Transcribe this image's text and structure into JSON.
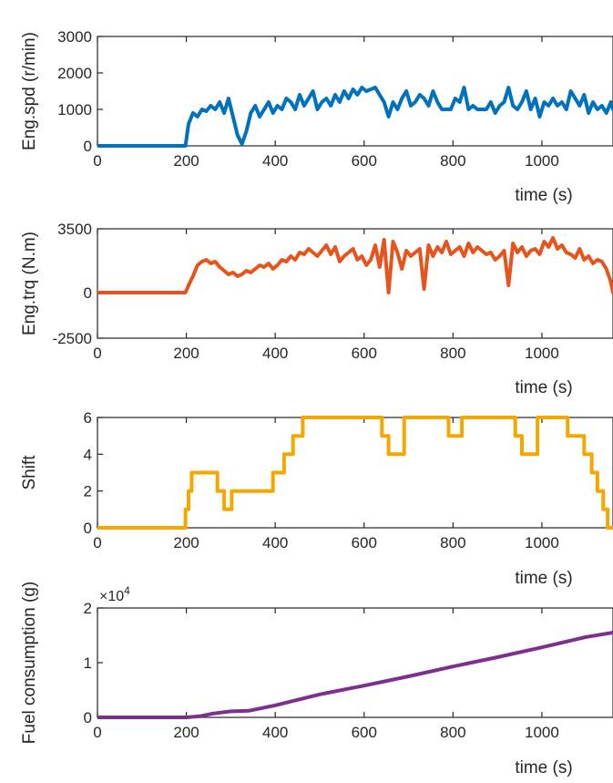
{
  "chart_data": [
    {
      "type": "line",
      "ylabel": "Eng.spd (r/min)",
      "xlabel": "time (s)",
      "xlim": [
        0,
        1160
      ],
      "ylim": [
        0,
        3000
      ],
      "xticks": [
        0,
        200,
        400,
        600,
        800,
        1000
      ],
      "xtick_labels": [
        "0",
        "200",
        "400",
        "600",
        "800",
        "1000"
      ],
      "yticks": [
        0,
        1000,
        2000,
        3000
      ],
      "ytick_labels": [
        "0",
        "1000",
        "2000",
        "3000"
      ],
      "color": "#0072BD",
      "series": [
        {
          "x": [
            0,
            198,
            205,
            215,
            225,
            235,
            245,
            255,
            265,
            275,
            285,
            295,
            305,
            315,
            325,
            335,
            345,
            355,
            365,
            375,
            385,
            395,
            405,
            415,
            425,
            435,
            445,
            455,
            465,
            475,
            485,
            495,
            505,
            515,
            525,
            535,
            545,
            555,
            565,
            575,
            585,
            595,
            605,
            615,
            625,
            635,
            645,
            655,
            665,
            675,
            685,
            695,
            705,
            715,
            725,
            735,
            745,
            755,
            765,
            775,
            785,
            795,
            805,
            815,
            825,
            835,
            845,
            855,
            865,
            875,
            885,
            895,
            905,
            915,
            925,
            935,
            945,
            955,
            965,
            975,
            985,
            995,
            1005,
            1015,
            1025,
            1035,
            1045,
            1055,
            1065,
            1075,
            1085,
            1095,
            1105,
            1115,
            1125,
            1135,
            1145,
            1155,
            1160
          ],
          "y": [
            0,
            0,
            600,
            900,
            800,
            1000,
            950,
            1100,
            1000,
            1200,
            900,
            1300,
            800,
            300,
            50,
            400,
            900,
            1100,
            800,
            1000,
            1200,
            900,
            1100,
            1000,
            1300,
            1200,
            1000,
            1400,
            1100,
            1300,
            1500,
            1000,
            1200,
            1300,
            1100,
            1400,
            1200,
            1500,
            1300,
            1550,
            1400,
            1600,
            1500,
            1550,
            1600,
            1400,
            1200,
            800,
            1200,
            1000,
            1300,
            1500,
            1100,
            1200,
            1400,
            1300,
            1100,
            1500,
            1200,
            1000,
            1000,
            1000,
            1300,
            1200,
            1600,
            1000,
            1100,
            1000,
            1000,
            1000,
            1200,
            900,
            1100,
            1200,
            1600,
            1100,
            1000,
            1200,
            1500,
            1000,
            1300,
            800,
            1200,
            1100,
            1300,
            1100,
            1200,
            1000,
            1500,
            1300,
            1100,
            1400,
            900,
            1200,
            1000,
            1100,
            900,
            1200,
            1000
          ]
        }
      ]
    },
    {
      "type": "line",
      "ylabel": "Eng.trq (N.m)",
      "xlabel": "time (s)",
      "xlim": [
        0,
        1160
      ],
      "ylim": [
        -2500,
        3500
      ],
      "xticks": [
        0,
        200,
        400,
        600,
        800,
        1000
      ],
      "xtick_labels": [
        "0",
        "200",
        "400",
        "600",
        "800",
        "1000"
      ],
      "yticks": [
        -2500,
        0,
        3500
      ],
      "ytick_labels": [
        "-2500",
        "0",
        "3500"
      ],
      "color": "#E8531C",
      "series": [
        {
          "x": [
            0,
            198,
            205,
            215,
            225,
            235,
            245,
            255,
            265,
            275,
            285,
            295,
            305,
            315,
            325,
            335,
            345,
            355,
            365,
            375,
            385,
            395,
            405,
            415,
            425,
            435,
            445,
            455,
            465,
            475,
            485,
            495,
            505,
            515,
            525,
            535,
            545,
            555,
            565,
            575,
            585,
            595,
            605,
            615,
            625,
            635,
            645,
            655,
            665,
            675,
            685,
            695,
            705,
            715,
            725,
            735,
            745,
            755,
            765,
            775,
            785,
            795,
            805,
            815,
            825,
            835,
            845,
            855,
            865,
            875,
            885,
            895,
            905,
            915,
            925,
            935,
            945,
            955,
            965,
            975,
            985,
            995,
            1005,
            1015,
            1025,
            1035,
            1045,
            1055,
            1065,
            1075,
            1085,
            1095,
            1105,
            1115,
            1125,
            1135,
            1145,
            1155,
            1160
          ],
          "y": [
            0,
            0,
            400,
            900,
            1500,
            1700,
            1800,
            1600,
            1700,
            1400,
            1200,
            1000,
            1100,
            900,
            1000,
            1200,
            1100,
            1300,
            1500,
            1400,
            1600,
            1300,
            1500,
            1800,
            1700,
            2000,
            1800,
            2200,
            2100,
            2400,
            2200,
            2000,
            2300,
            2600,
            2100,
            2500,
            1700,
            2000,
            2200,
            2400,
            1800,
            2000,
            1500,
            1800,
            2600,
            1400,
            2900,
            0,
            2800,
            2200,
            1300,
            2300,
            2000,
            2200,
            2400,
            200,
            2600,
            2000,
            2500,
            2200,
            2800,
            2100,
            2300,
            2500,
            2000,
            2700,
            2200,
            2500,
            2300,
            2100,
            2200,
            1800,
            2000,
            2300,
            400,
            2700,
            2200,
            2500,
            2000,
            2300,
            2400,
            2100,
            2800,
            2500,
            3000,
            2400,
            2600,
            2200,
            2100,
            1900,
            2400,
            1800,
            2000,
            1600,
            1800,
            1700,
            1300,
            600,
            0
          ]
        }
      ]
    },
    {
      "type": "line",
      "ylabel": "Shift",
      "xlabel": "time (s)",
      "xlim": [
        0,
        1160
      ],
      "ylim": [
        0,
        6
      ],
      "xticks": [
        0,
        200,
        400,
        600,
        800,
        1000
      ],
      "xtick_labels": [
        "0",
        "200",
        "400",
        "600",
        "800",
        "1000"
      ],
      "yticks": [
        0,
        2,
        4,
        6
      ],
      "ytick_labels": [
        "0",
        "2",
        "4",
        "6"
      ],
      "color": "#F5A700",
      "series": [
        {
          "x": [
            0,
            198,
            198,
            205,
            205,
            212,
            212,
            220,
            220,
            270,
            270,
            285,
            285,
            302,
            302,
            340,
            340,
            395,
            395,
            420,
            420,
            440,
            440,
            462,
            462,
            475,
            475,
            640,
            640,
            655,
            655,
            690,
            690,
            790,
            790,
            820,
            820,
            940,
            940,
            955,
            955,
            990,
            990,
            1058,
            1058,
            1075,
            1075,
            1095,
            1095,
            1112,
            1112,
            1125,
            1125,
            1138,
            1138,
            1148,
            1148,
            1160
          ],
          "y": [
            0,
            0,
            1,
            1,
            2,
            2,
            3,
            3,
            3,
            3,
            2,
            2,
            1,
            1,
            2,
            2,
            2,
            2,
            3,
            3,
            4,
            4,
            5,
            5,
            6,
            6,
            6,
            6,
            5,
            5,
            4,
            4,
            6,
            6,
            5,
            5,
            6,
            6,
            5,
            5,
            4,
            4,
            6,
            6,
            5,
            5,
            5,
            5,
            4,
            4,
            3,
            3,
            2,
            2,
            1,
            1,
            0,
            0
          ]
        }
      ]
    },
    {
      "type": "line",
      "ylabel": "Fuel consumption (g)",
      "xlabel": "time (s)",
      "xlim": [
        0,
        1160
      ],
      "ylim": [
        0,
        20000
      ],
      "exponent_label": "×10",
      "exponent_power": "4",
      "xticks": [
        0,
        200,
        400,
        600,
        800,
        1000
      ],
      "xtick_labels": [
        "0",
        "200",
        "400",
        "600",
        "800",
        "1000"
      ],
      "yticks": [
        0,
        10000,
        20000
      ],
      "ytick_labels": [
        "0",
        "1",
        "2"
      ],
      "color": "#7E2F8E",
      "series": [
        {
          "x": [
            0,
            200,
            230,
            260,
            300,
            340,
            400,
            500,
            600,
            700,
            800,
            900,
            1000,
            1100,
            1160
          ],
          "y": [
            0,
            0,
            200,
            700,
            1100,
            1200,
            2200,
            4200,
            5800,
            7500,
            9300,
            11000,
            12800,
            14700,
            15500
          ]
        }
      ]
    }
  ]
}
